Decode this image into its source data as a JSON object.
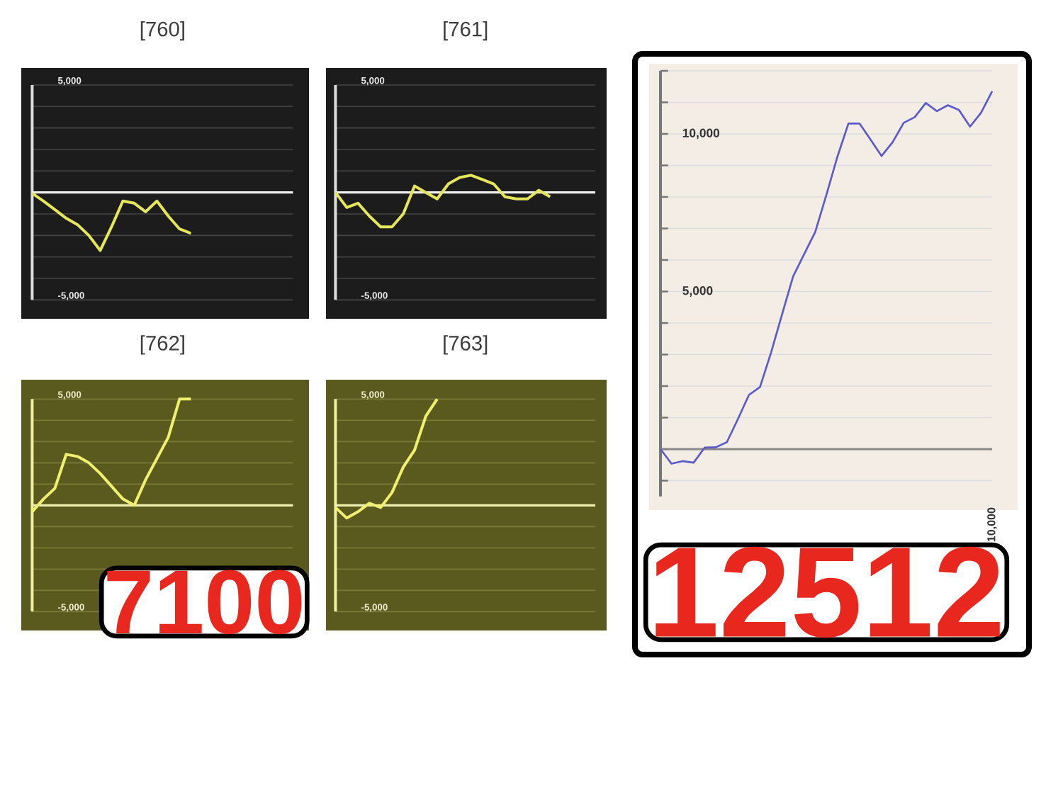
{
  "chart_data": [
    {
      "type": "line",
      "title": "[760]",
      "categories": [
        null,
        null,
        null,
        null,
        null,
        null,
        null,
        null,
        null,
        null,
        null,
        null,
        null,
        null,
        null,
        null,
        null,
        null,
        null,
        null,
        null,
        null,
        null,
        null
      ],
      "series": [
        {
          "color": "#e6e65a",
          "values": [
            -40,
            -400,
            -800,
            -1200,
            -1500,
            -2000,
            -2700,
            -1600,
            -400,
            -500,
            -900,
            -400,
            -1100,
            -1700,
            -1900,
            null,
            null,
            null,
            null,
            null,
            null,
            null,
            null,
            null
          ]
        }
      ],
      "ylim": [
        -5000,
        5000
      ],
      "yticks": [
        {
          "value": -5000,
          "label": "-5,000"
        },
        {
          "value": -4000,
          "label": null
        },
        {
          "value": -3000,
          "label": null
        },
        {
          "value": -2000,
          "label": null
        },
        {
          "value": -1000,
          "label": null
        },
        {
          "value": 0,
          "label": null
        },
        {
          "value": 1000,
          "label": null
        },
        {
          "value": 2000,
          "label": null
        },
        {
          "value": 3000,
          "label": null
        },
        {
          "value": 4000,
          "label": null
        },
        {
          "value": 5000,
          "label": "5,000"
        }
      ],
      "grid": "y",
      "tick_labels": "y",
      "ref_lines": [
        {
          "axis": "y",
          "value": 0,
          "color": "#eeeeee"
        }
      ]
    },
    {
      "type": "line",
      "title": "[761]",
      "categories": [
        null,
        null,
        null,
        null,
        null,
        null,
        null,
        null,
        null,
        null,
        null,
        null,
        null,
        null,
        null,
        null,
        null,
        null,
        null,
        null,
        null,
        null,
        null,
        null
      ],
      "series": [
        {
          "color": "#e6e65a",
          "values": [
            0,
            -700,
            -500,
            -1100,
            -1600,
            -1600,
            -1000,
            300,
            0,
            -300,
            400,
            700,
            800,
            600,
            400,
            -200,
            -300,
            -300,
            100,
            -200,
            null,
            null,
            null,
            null
          ]
        }
      ],
      "ylim": [
        -5000,
        5000
      ],
      "yticks": [
        {
          "value": -5000,
          "label": "-5,000"
        },
        {
          "value": -4000,
          "label": null
        },
        {
          "value": -3000,
          "label": null
        },
        {
          "value": -2000,
          "label": null
        },
        {
          "value": -1000,
          "label": null
        },
        {
          "value": 0,
          "label": null
        },
        {
          "value": 1000,
          "label": null
        },
        {
          "value": 2000,
          "label": null
        },
        {
          "value": 3000,
          "label": null
        },
        {
          "value": 4000,
          "label": null
        },
        {
          "value": 5000,
          "label": "5,000"
        }
      ],
      "grid": "y",
      "tick_labels": "y",
      "ref_lines": [
        {
          "axis": "y",
          "value": 0,
          "color": "#eeeeee"
        }
      ]
    },
    {
      "type": "line",
      "title": "[762]",
      "categories": [
        null,
        null,
        null,
        null,
        null,
        null,
        null,
        null,
        null,
        null,
        null,
        null,
        null,
        null,
        null,
        null,
        null,
        null,
        null,
        null,
        null,
        null,
        null,
        null
      ],
      "series": [
        {
          "color": "#f0f070",
          "values": [
            -300,
            300,
            800,
            2400,
            2300,
            2000,
            1500,
            900,
            300,
            0,
            1200,
            2200,
            3200,
            5000,
            5000,
            null,
            null,
            null,
            null,
            null,
            null,
            null,
            null,
            null
          ]
        }
      ],
      "ylim": [
        -5000,
        5000
      ],
      "yticks": [
        {
          "value": -5000,
          "label": "-5,000"
        },
        {
          "value": -4000,
          "label": null
        },
        {
          "value": -3000,
          "label": null
        },
        {
          "value": -2000,
          "label": null
        },
        {
          "value": -1000,
          "label": null
        },
        {
          "value": 0,
          "label": null
        },
        {
          "value": 1000,
          "label": null
        },
        {
          "value": 2000,
          "label": null
        },
        {
          "value": 3000,
          "label": null
        },
        {
          "value": 4000,
          "label": null
        },
        {
          "value": 5000,
          "label": "5,000"
        }
      ],
      "grid": "y",
      "tick_labels": "y",
      "ref_lines": [
        {
          "axis": "y",
          "value": 0,
          "color": "#f0f0b0"
        }
      ],
      "annotations": [
        "7100"
      ]
    },
    {
      "type": "line",
      "title": "[763]",
      "categories": [
        null,
        null,
        null,
        null,
        null,
        null,
        null,
        null,
        null,
        null,
        null,
        null,
        null,
        null,
        null,
        null,
        null,
        null,
        null,
        null,
        null,
        null,
        null,
        null
      ],
      "series": [
        {
          "color": "#f0f070",
          "values": [
            -100,
            -600,
            -300,
            100,
            -100,
            600,
            1800,
            2600,
            4200,
            5000,
            null,
            null,
            null,
            null,
            null,
            null,
            null,
            null,
            null,
            null,
            null,
            null,
            null,
            null
          ]
        }
      ],
      "ylim": [
        -5000,
        5000
      ],
      "yticks": [
        {
          "value": -5000,
          "label": "-5,000"
        },
        {
          "value": -4000,
          "label": null
        },
        {
          "value": -3000,
          "label": null
        },
        {
          "value": -2000,
          "label": null
        },
        {
          "value": -1000,
          "label": null
        },
        {
          "value": 0,
          "label": null
        },
        {
          "value": 1000,
          "label": null
        },
        {
          "value": 2000,
          "label": null
        },
        {
          "value": 3000,
          "label": null
        },
        {
          "value": 4000,
          "label": null
        },
        {
          "value": 5000,
          "label": "5,000"
        }
      ],
      "grid": "y",
      "tick_labels": "y",
      "ref_lines": [
        {
          "axis": "y",
          "value": 0,
          "color": "#f0f0b0"
        }
      ]
    },
    {
      "type": "line",
      "categories": [
        null,
        null,
        null,
        null,
        null,
        null,
        null,
        null,
        null,
        null,
        null,
        null,
        null,
        null,
        null,
        null,
        null,
        null,
        null,
        null,
        null,
        null,
        null,
        null,
        null,
        null,
        null,
        null,
        null,
        null,
        null
      ],
      "series": [
        {
          "color": "#5a5ac8",
          "values": [
            0,
            -460,
            -380,
            -430,
            50,
            60,
            220,
            950,
            1720,
            1970,
            3060,
            4280,
            5480,
            6190,
            6890,
            8060,
            9270,
            10330,
            10330,
            9820,
            9300,
            9740,
            10350,
            10530,
            10980,
            10720,
            10910,
            10760,
            10230,
            10670,
            11350
          ]
        }
      ],
      "ylim": [
        -1500,
        12000
      ],
      "yticks": [
        {
          "value": -1000,
          "label": null
        },
        {
          "value": 0,
          "label": null
        },
        {
          "value": 1000,
          "label": null
        },
        {
          "value": 2000,
          "label": null
        },
        {
          "value": 3000,
          "label": null
        },
        {
          "value": 4000,
          "label": null
        },
        {
          "value": 5000,
          "label": "5,000"
        },
        {
          "value": 6000,
          "label": null
        },
        {
          "value": 7000,
          "label": null
        },
        {
          "value": 8000,
          "label": null
        },
        {
          "value": 9000,
          "label": null
        },
        {
          "value": 10000,
          "label": "10,000"
        },
        {
          "value": 11000,
          "label": null
        },
        {
          "value": 12000,
          "label": null
        }
      ],
      "grid": "y",
      "tick_labels": "y",
      "ref_lines": [
        {
          "axis": "y",
          "value": 0,
          "color": "#888888"
        }
      ],
      "annotations": [
        "12512",
        "10,000"
      ]
    }
  ]
}
